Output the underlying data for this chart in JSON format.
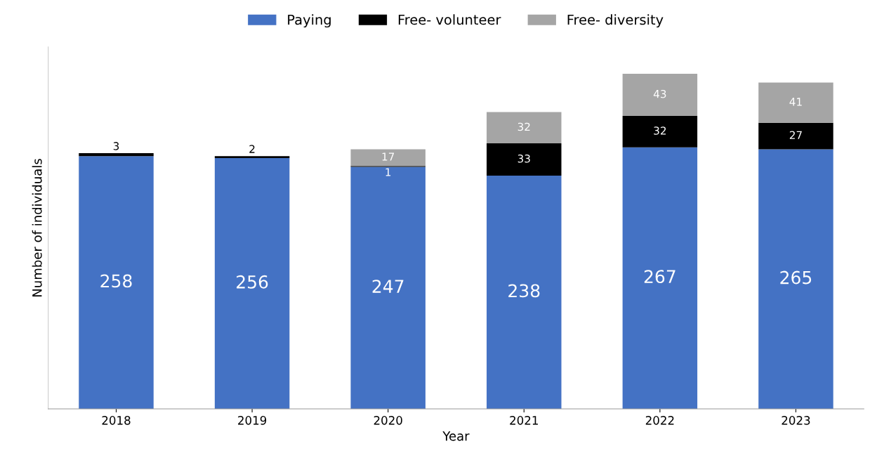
{
  "chart_data": {
    "type": "bar",
    "stacked": true,
    "xlabel": "Year",
    "ylabel": "Number of individuals",
    "categories": [
      "2018",
      "2019",
      "2020",
      "2021",
      "2022",
      "2023"
    ],
    "series": [
      {
        "name": "Paying",
        "color": "#4472c4",
        "values": [
          258,
          256,
          247,
          238,
          267,
          265
        ]
      },
      {
        "name": "Free- volunteer",
        "color": "#000000",
        "values": [
          3,
          2,
          1,
          33,
          32,
          27
        ]
      },
      {
        "name": "Free- diversity",
        "color": "#a5a5a5",
        "values": [
          null,
          null,
          17,
          32,
          43,
          41
        ]
      }
    ],
    "data_labels": true,
    "legend": "top",
    "tick_labels": "x"
  }
}
